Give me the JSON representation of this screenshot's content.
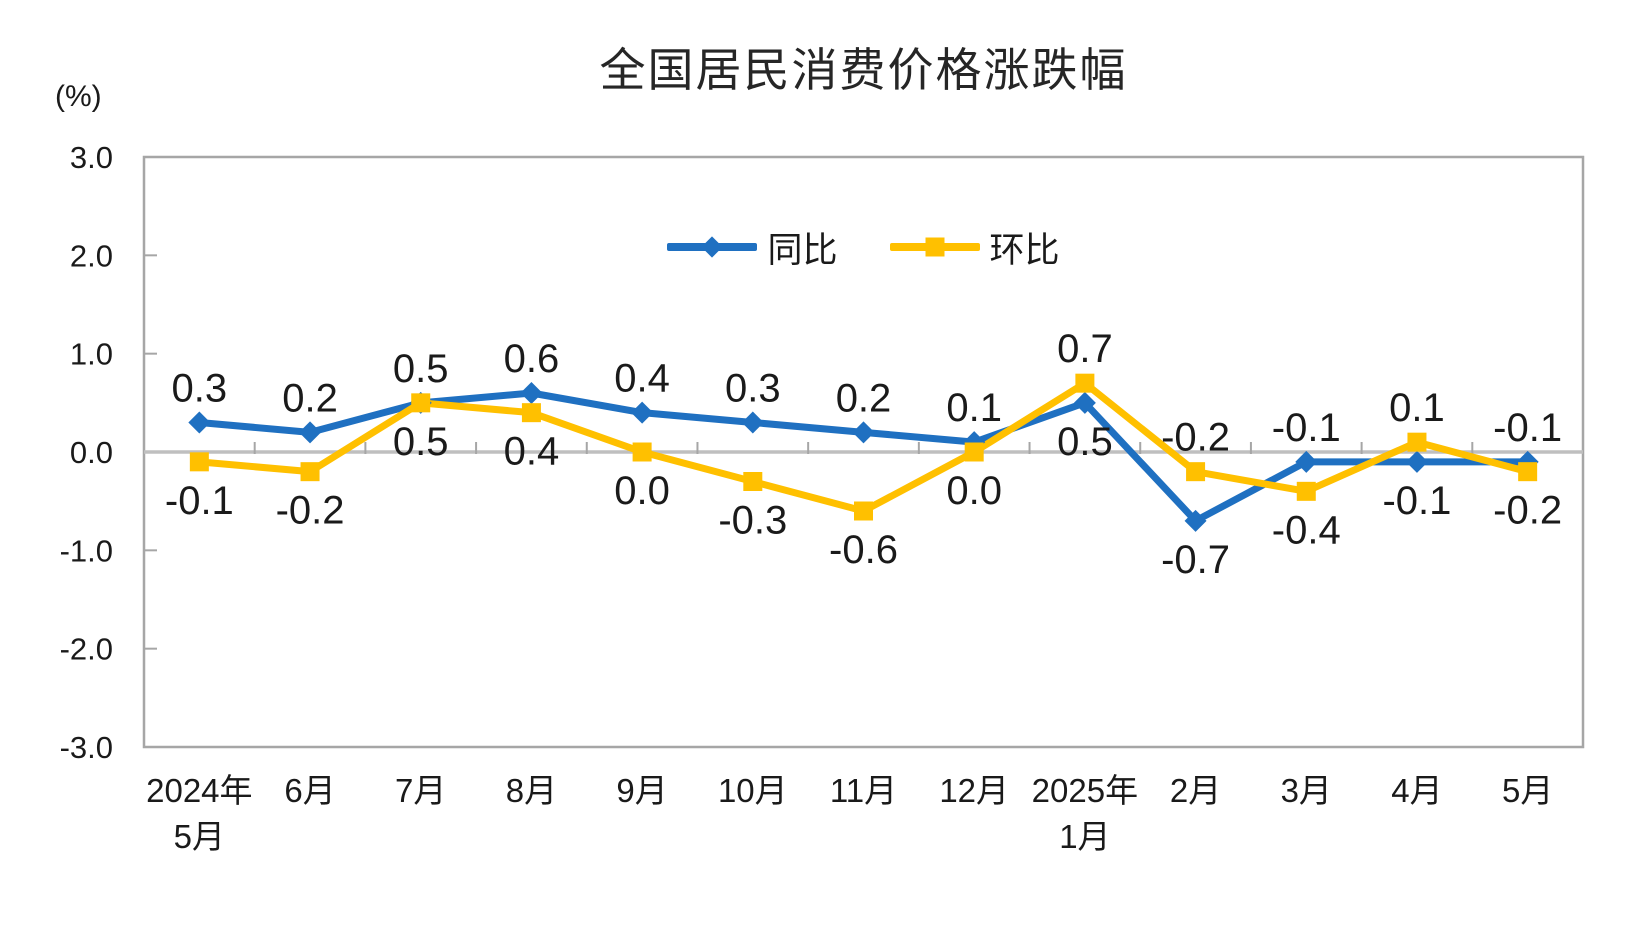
{
  "title": "全国居民消费价格涨跌幅",
  "unit_label": "(%)",
  "colors": {
    "tongbi_blue": "#1F70C1",
    "huanbi_yellow": "#FFC000",
    "zero_axis_gray": "#BFBFBF",
    "plot_border_gray": "#A6A6A6",
    "text_black": "#1A1A1A"
  },
  "chart_data": {
    "type": "line",
    "title": "全国居民消费价格涨跌幅",
    "ylabel": "(%)",
    "xlabel": "",
    "ylim": [
      -3.0,
      3.0
    ],
    "yticks": [
      {
        "value": 3,
        "label": "3.0"
      },
      {
        "value": 2,
        "label": "2.0"
      },
      {
        "value": 1,
        "label": "1.0"
      },
      {
        "value": 0,
        "label": "0.0"
      },
      {
        "value": -1,
        "label": "-1.0"
      },
      {
        "value": -2,
        "label": "-2.0"
      },
      {
        "value": -3,
        "label": "-3.0"
      }
    ],
    "grid": false,
    "legend_position": "inside-top-center",
    "categories": [
      [
        "2024年",
        "5月"
      ],
      [
        "6月"
      ],
      [
        "7月"
      ],
      [
        "8月"
      ],
      [
        "9月"
      ],
      [
        "10月"
      ],
      [
        "11月"
      ],
      [
        "12月"
      ],
      [
        "2025年",
        "1月"
      ],
      [
        "2月"
      ],
      [
        "3月"
      ],
      [
        "4月"
      ],
      [
        "5月"
      ]
    ],
    "series": [
      {
        "name": "同比",
        "color": "#1F70C1",
        "marker": "diamond",
        "values": [
          0.3,
          0.2,
          0.5,
          0.6,
          0.4,
          0.3,
          0.2,
          0.1,
          0.5,
          -0.7,
          -0.1,
          -0.1,
          -0.1
        ],
        "labels": [
          {
            "text": "0.3",
            "pos": "above"
          },
          {
            "text": "0.2",
            "pos": "above"
          },
          {
            "text": "0.5",
            "pos": "above"
          },
          {
            "text": "0.6",
            "pos": "above"
          },
          {
            "text": "0.4",
            "pos": "above"
          },
          {
            "text": "0.3",
            "pos": "above"
          },
          {
            "text": "0.2",
            "pos": "above"
          },
          {
            "text": "0.1",
            "pos": "above"
          },
          {
            "text": "0.5",
            "pos": "below"
          },
          {
            "text": "-0.7",
            "pos": "below"
          },
          {
            "text": "-0.1",
            "pos": "above"
          },
          {
            "text": "-0.1",
            "pos": "below"
          },
          {
            "text": "-0.1",
            "pos": "above"
          }
        ]
      },
      {
        "name": "环比",
        "color": "#FFC000",
        "marker": "square",
        "values": [
          -0.1,
          -0.2,
          0.5,
          0.4,
          0.0,
          -0.3,
          -0.6,
          0.0,
          0.7,
          -0.2,
          -0.4,
          0.1,
          -0.2
        ],
        "labels": [
          {
            "text": "-0.1",
            "pos": "below"
          },
          {
            "text": "-0.2",
            "pos": "below"
          },
          {
            "text": "0.5",
            "pos": "below"
          },
          {
            "text": "0.4",
            "pos": "below"
          },
          {
            "text": "0.0",
            "pos": "below"
          },
          {
            "text": "-0.3",
            "pos": "below"
          },
          {
            "text": "-0.6",
            "pos": "below"
          },
          {
            "text": "0.0",
            "pos": "below"
          },
          {
            "text": "0.7",
            "pos": "above"
          },
          {
            "text": "-0.2",
            "pos": "above"
          },
          {
            "text": "-0.4",
            "pos": "below"
          },
          {
            "text": "0.1",
            "pos": "above"
          },
          {
            "text": "-0.2",
            "pos": "below"
          }
        ]
      }
    ]
  }
}
